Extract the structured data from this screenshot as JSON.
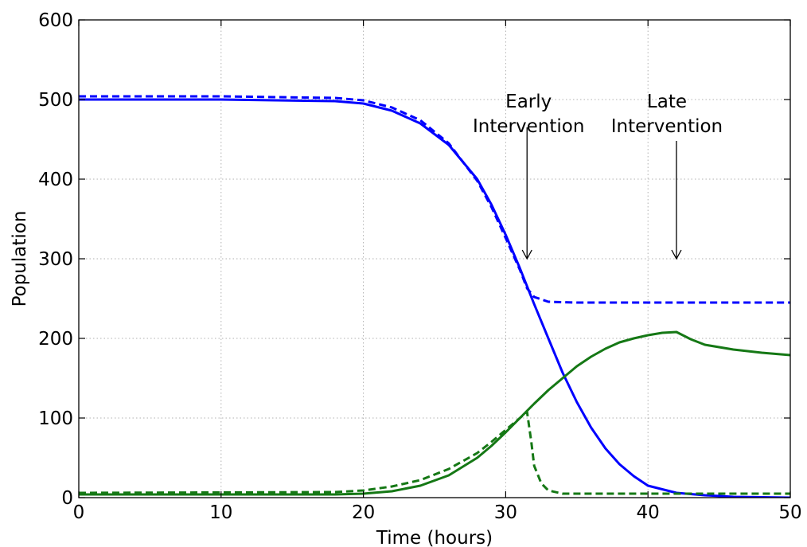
{
  "chart_data": {
    "type": "line",
    "xlabel": "Time (hours)",
    "ylabel": "Population",
    "xlim": [
      0,
      50
    ],
    "ylim": [
      0,
      600
    ],
    "xticks": [
      0,
      10,
      20,
      30,
      40,
      50
    ],
    "yticks": [
      0,
      100,
      200,
      300,
      400,
      500,
      600
    ],
    "grid": true,
    "series": [
      {
        "color": "#0000ff",
        "linestyle": "solid",
        "x": [
          0,
          10,
          18,
          20,
          22,
          24,
          26,
          28,
          29,
          30,
          31,
          32,
          33,
          34,
          35,
          36,
          37,
          38,
          39,
          40,
          42,
          44,
          46,
          50
        ],
        "y": [
          500,
          500,
          498,
          495,
          486,
          470,
          443,
          400,
          368,
          330,
          288,
          243,
          200,
          157,
          120,
          88,
          62,
          42,
          27,
          15,
          6,
          3,
          1,
          0
        ]
      },
      {
        "color": "#0000ff",
        "linestyle": "dashed",
        "x": [
          0,
          10,
          18,
          20,
          22,
          24,
          26,
          28,
          29,
          30,
          31,
          31.5,
          32,
          33,
          35,
          40,
          50
        ],
        "y": [
          504,
          504,
          502,
          499,
          490,
          474,
          445,
          398,
          365,
          326,
          286,
          263,
          252,
          246,
          245,
          245,
          245
        ]
      },
      {
        "color": "#157815",
        "linestyle": "solid",
        "x": [
          0,
          18,
          20,
          22,
          24,
          26,
          28,
          29,
          30,
          31,
          32,
          33,
          34,
          35,
          36,
          37,
          38,
          39,
          40,
          41,
          42,
          43,
          44,
          46,
          48,
          50
        ],
        "y": [
          4,
          4,
          5,
          8,
          15,
          28,
          50,
          65,
          82,
          100,
          118,
          135,
          150,
          165,
          177,
          187,
          195,
          200,
          204,
          207,
          208,
          199,
          192,
          186,
          182,
          179
        ]
      },
      {
        "color": "#157815",
        "linestyle": "dashed",
        "x": [
          0,
          18,
          20,
          22,
          24,
          26,
          28,
          29,
          30,
          31,
          31.5,
          31.8,
          32,
          32.5,
          33,
          34,
          36,
          40,
          50
        ],
        "y": [
          6,
          7,
          9,
          14,
          22,
          36,
          56,
          70,
          85,
          100,
          108,
          70,
          40,
          18,
          9,
          5,
          5,
          5,
          5
        ]
      }
    ],
    "annotations": [
      {
        "lines": [
          "Early",
          "Intervention"
        ],
        "arrow_x": 31.5,
        "arrow_y_start": 465,
        "arrow_y_end": 300
      },
      {
        "lines": [
          "Late",
          "Intervention"
        ],
        "arrow_x": 42,
        "arrow_y_start": 448,
        "arrow_y_end": 300
      }
    ]
  }
}
